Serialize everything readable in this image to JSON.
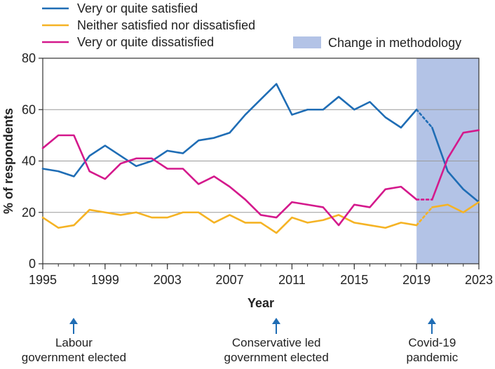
{
  "chart_data": {
    "type": "line",
    "xlabel": "Year",
    "ylabel": "% of respondents",
    "ylim": [
      0,
      80
    ],
    "xlim": [
      1995,
      2023
    ],
    "grid": true,
    "yticks": [
      0,
      20,
      40,
      60,
      80
    ],
    "xticks": [
      1995,
      1999,
      2003,
      2007,
      2011,
      2015,
      2019,
      2023
    ],
    "x": [
      1995,
      1996,
      1997,
      1998,
      1999,
      2000,
      2001,
      2002,
      2003,
      2004,
      2005,
      2006,
      2007,
      2008,
      2009,
      2010,
      2011,
      2012,
      2013,
      2014,
      2015,
      2016,
      2017,
      2018,
      2019,
      2020,
      2021,
      2022,
      2023
    ],
    "break_between": [
      2019,
      2020
    ],
    "series": [
      {
        "name": "Very or quite satisfied",
        "color": "#1f6db5",
        "values": [
          37,
          36,
          34,
          42,
          46,
          42,
          38,
          40,
          44,
          43,
          48,
          49,
          51,
          58,
          64,
          70,
          58,
          60,
          60,
          65,
          60,
          63,
          57,
          53,
          60,
          53,
          36,
          29,
          24
        ]
      },
      {
        "name": "Neither satisfied nor dissatisfied",
        "color": "#f5b324",
        "values": [
          18,
          14,
          15,
          21,
          20,
          19,
          20,
          18,
          18,
          20,
          20,
          16,
          19,
          16,
          16,
          12,
          18,
          16,
          17,
          19,
          16,
          15,
          14,
          16,
          15,
          22,
          23,
          20,
          24
        ]
      },
      {
        "name": "Very or quite dissatisfied",
        "color": "#d4198c",
        "values": [
          45,
          50,
          50,
          36,
          33,
          39,
          41,
          41,
          37,
          37,
          31,
          34,
          30,
          25,
          19,
          18,
          24,
          23,
          22,
          15,
          23,
          22,
          29,
          30,
          25,
          25,
          41,
          51,
          52
        ]
      }
    ],
    "shaded_region": {
      "label": "Change in methodology",
      "from": 2019,
      "to": 2023,
      "color": "#b3c3e6"
    },
    "annotations": [
      {
        "x": 1997,
        "text": "Labour\ngovernment elected"
      },
      {
        "x": 2010,
        "text": "Conservative led\ngovernment elected"
      },
      {
        "x": 2020,
        "text": "Covid-19\npandemic"
      }
    ]
  }
}
